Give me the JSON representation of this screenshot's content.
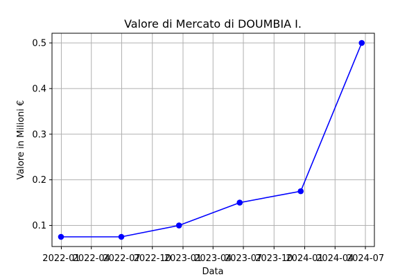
{
  "chart_data": {
    "type": "line",
    "title": "Valore di Mercato di DOUMBIA I.",
    "xlabel": "Data",
    "ylabel": "Valore in Milioni €",
    "x_ticks": [
      "2022-01",
      "2022-04",
      "2022-07",
      "2022-10",
      "2023-01",
      "2023-04",
      "2023-07",
      "2023-10",
      "2024-01",
      "2024-04",
      "2024-07"
    ],
    "y_ticks": [
      "0.1",
      "0.2",
      "0.3",
      "0.4",
      "0.5"
    ],
    "xlim": [
      "2021-12-04",
      "2024-07-28"
    ],
    "ylim": [
      0.05375,
      0.52125
    ],
    "grid": true,
    "series": [
      {
        "color": "#0000ff",
        "points": [
          {
            "x": "2021-12-31",
            "y": 0.075
          },
          {
            "x": "2022-06-30",
            "y": 0.075
          },
          {
            "x": "2022-12-20",
            "y": 0.1
          },
          {
            "x": "2023-06-20",
            "y": 0.15
          },
          {
            "x": "2023-12-20",
            "y": 0.175
          },
          {
            "x": "2024-06-20",
            "y": 0.5
          }
        ]
      }
    ]
  }
}
